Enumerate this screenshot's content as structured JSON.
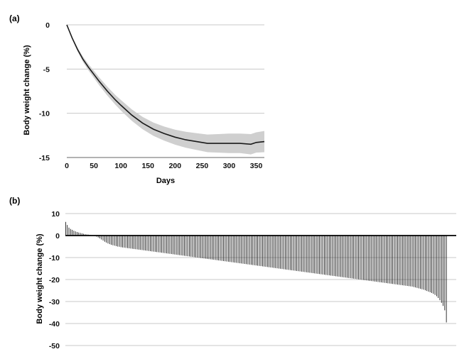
{
  "chart_data": [
    {
      "panel": "(a)",
      "type": "line",
      "xlabel": "Days",
      "ylabel": "Body weight change (%)",
      "xlim": [
        0,
        365
      ],
      "ylim": [
        -15,
        0
      ],
      "xticks": [
        "0",
        "50",
        "100",
        "150",
        "200",
        "250",
        "300",
        "350"
      ],
      "yticks": [
        "0",
        "-5",
        "-10",
        "-15"
      ],
      "grid": true,
      "series": [
        {
          "kind": "mean_with_band",
          "x": [
            0,
            10,
            20,
            30,
            40,
            50,
            60,
            75,
            90,
            100,
            120,
            140,
            160,
            180,
            200,
            220,
            240,
            260,
            280,
            300,
            320,
            340,
            350,
            365
          ],
          "y": [
            0,
            -1.5,
            -2.8,
            -3.9,
            -4.8,
            -5.6,
            -6.4,
            -7.5,
            -8.5,
            -9.1,
            -10.2,
            -11.1,
            -11.8,
            -12.3,
            -12.7,
            -13.0,
            -13.2,
            -13.4,
            -13.4,
            -13.4,
            -13.4,
            -13.5,
            -13.3,
            -13.2
          ],
          "band": [
            0,
            0.1,
            0.2,
            0.3,
            0.35,
            0.4,
            0.45,
            0.5,
            0.55,
            0.6,
            0.65,
            0.7,
            0.75,
            0.8,
            0.85,
            0.9,
            0.95,
            1.0,
            1.05,
            1.1,
            1.1,
            1.15,
            1.15,
            1.2
          ]
        }
      ]
    },
    {
      "panel": "(b)",
      "type": "bar",
      "xlabel": "",
      "ylabel": "Body weight change (%)",
      "ylim": [
        -50,
        10
      ],
      "yticks": [
        "10",
        "0",
        "-10",
        "-20",
        "-30",
        "-40",
        "-50"
      ],
      "grid": true,
      "ordering": "sorted descending",
      "values": [
        6.2,
        4.8,
        3.6,
        3.0,
        2.6,
        2.2,
        1.9,
        1.6,
        1.4,
        1.2,
        1.0,
        0.8,
        0.6,
        0.5,
        0.4,
        0.3,
        0.2,
        0.1,
        -0.2,
        -0.5,
        -0.9,
        -1.3,
        -1.8,
        -2.3,
        -2.8,
        -3.2,
        -3.6,
        -3.9,
        -4.2,
        -4.4,
        -4.6,
        -4.8,
        -5.0,
        -5.1,
        -5.3,
        -5.4,
        -5.5,
        -5.6,
        -5.7,
        -5.8,
        -5.9,
        -6.0,
        -6.1,
        -6.2,
        -6.3,
        -6.4,
        -6.5,
        -6.6,
        -6.7,
        -6.8,
        -6.9,
        -7.0,
        -7.1,
        -7.2,
        -7.3,
        -7.4,
        -7.5,
        -7.6,
        -7.7,
        -7.8,
        -7.9,
        -8.0,
        -8.1,
        -8.2,
        -8.3,
        -8.4,
        -8.5,
        -8.6,
        -8.7,
        -8.8,
        -8.9,
        -9.0,
        -9.1,
        -9.2,
        -9.3,
        -9.4,
        -9.5,
        -9.6,
        -9.7,
        -9.8,
        -9.9,
        -10.0,
        -10.1,
        -10.2,
        -10.3,
        -10.4,
        -10.5,
        -10.6,
        -10.7,
        -10.8,
        -10.9,
        -11.0,
        -11.1,
        -11.2,
        -11.3,
        -11.4,
        -11.5,
        -11.6,
        -11.7,
        -11.8,
        -11.9,
        -12.0,
        -12.1,
        -12.2,
        -12.3,
        -12.4,
        -12.5,
        -12.6,
        -12.7,
        -12.8,
        -12.9,
        -13.0,
        -13.1,
        -13.2,
        -13.3,
        -13.4,
        -13.5,
        -13.6,
        -13.7,
        -13.8,
        -13.9,
        -14.0,
        -14.1,
        -14.2,
        -14.3,
        -14.4,
        -14.5,
        -14.6,
        -14.7,
        -14.8,
        -14.9,
        -15.0,
        -15.1,
        -15.2,
        -15.3,
        -15.4,
        -15.5,
        -15.6,
        -15.7,
        -15.8,
        -15.9,
        -16.0,
        -16.1,
        -16.2,
        -16.3,
        -16.4,
        -16.5,
        -16.6,
        -16.7,
        -16.8,
        -16.9,
        -17.0,
        -17.1,
        -17.2,
        -17.3,
        -17.4,
        -17.5,
        -17.6,
        -17.7,
        -17.8,
        -17.9,
        -18.0,
        -18.1,
        -18.2,
        -18.3,
        -18.4,
        -18.5,
        -18.6,
        -18.7,
        -18.8,
        -18.9,
        -19.0,
        -19.1,
        -19.2,
        -19.3,
        -19.4,
        -19.5,
        -19.6,
        -19.7,
        -19.8,
        -19.9,
        -20.0,
        -20.1,
        -20.2,
        -20.3,
        -20.4,
        -20.5,
        -20.6,
        -20.7,
        -20.8,
        -20.9,
        -21.0,
        -21.1,
        -21.2,
        -21.3,
        -21.4,
        -21.5,
        -21.6,
        -21.7,
        -21.8,
        -21.9,
        -22.0,
        -22.1,
        -22.2,
        -22.3,
        -22.4,
        -22.5,
        -22.6,
        -22.7,
        -22.8,
        -22.9,
        -23.0,
        -23.1,
        -23.2,
        -23.4,
        -23.6,
        -23.8,
        -24.0,
        -24.2,
        -24.4,
        -24.6,
        -24.9,
        -25.2,
        -25.5,
        -25.8,
        -26.1,
        -26.5,
        -27.0,
        -27.6,
        -28.4,
        -29.4,
        -30.6,
        -32.0,
        -34.0,
        -39.5
      ]
    }
  ]
}
